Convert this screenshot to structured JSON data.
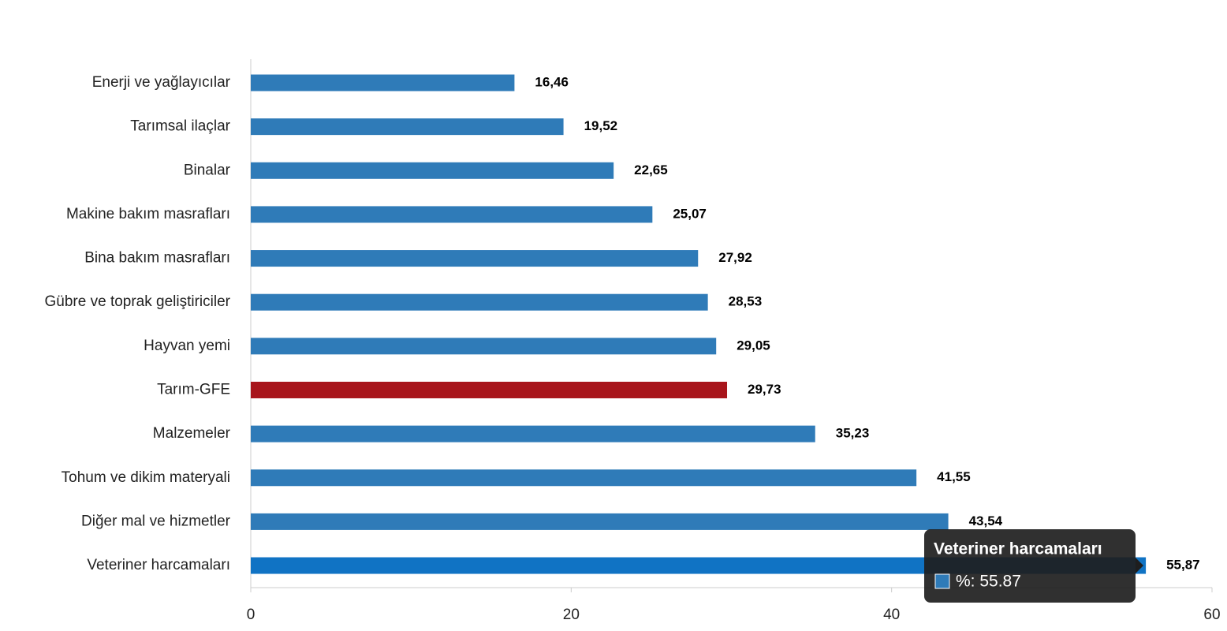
{
  "chart_data": {
    "type": "hbar",
    "categories": [
      "Enerji  ve yağlayıcılar",
      "Tarımsal ilaçlar",
      "Binalar",
      "Makine bakım masrafları",
      "Bina bakım masrafları",
      "Gübre ve toprak geliştiriciler",
      "Hayvan yemi",
      "Tarım-GFE",
      "Malzemeler",
      "Tohum ve dikim materyali",
      "Diğer mal ve hizmetler",
      "Veteriner harcamaları"
    ],
    "values": [
      16.46,
      19.52,
      22.65,
      25.07,
      27.92,
      28.53,
      29.05,
      29.73,
      35.23,
      41.55,
      43.54,
      55.87
    ],
    "value_labels": [
      "16,46",
      "19,52",
      "22,65",
      "25,07",
      "27,92",
      "28,53",
      "29,05",
      "29,73",
      "35,23",
      "41,55",
      "43,54",
      "55,87"
    ],
    "colors": [
      "#2f7bb8",
      "#2f7bb8",
      "#2f7bb8",
      "#2f7bb8",
      "#2f7bb8",
      "#2f7bb8",
      "#2f7bb8",
      "#a8151b",
      "#2f7bb8",
      "#2f7bb8",
      "#2f7bb8",
      "#1073c4"
    ],
    "xlim": [
      0,
      60
    ],
    "xticks": [
      0,
      20,
      40,
      60
    ],
    "tooltip": {
      "title": "Veteriner harcamaları",
      "label": "%: 55.87",
      "color": "#2f7bb8"
    }
  }
}
